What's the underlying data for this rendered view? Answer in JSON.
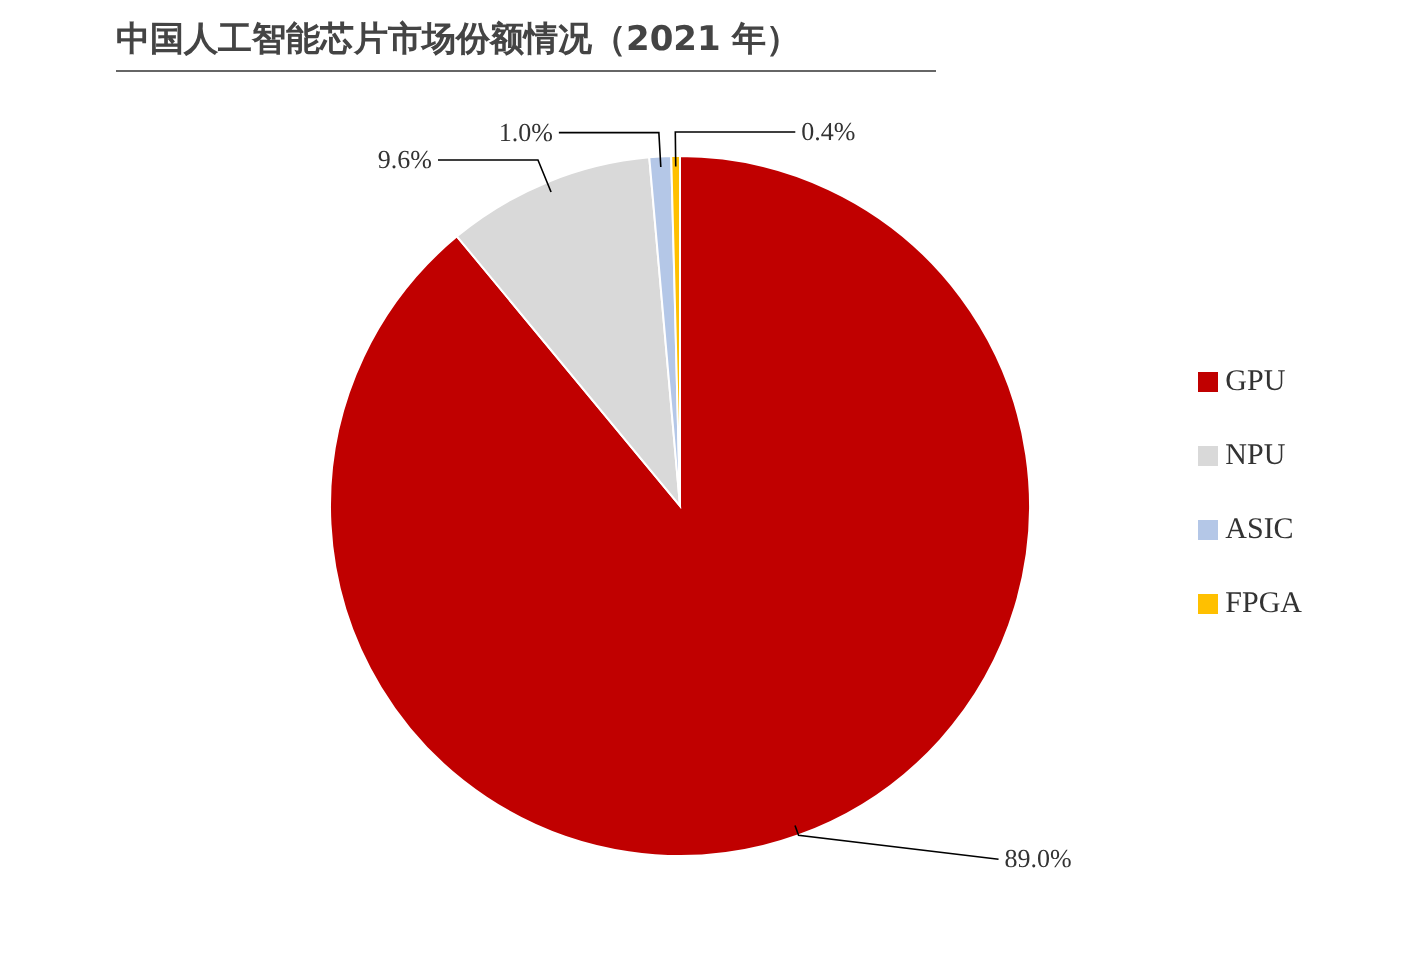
{
  "chart_data": {
    "type": "pie",
    "title": "中国人工智能芯片市场份额情况（2021 年）",
    "categories": [
      "GPU",
      "NPU",
      "ASIC",
      "FPGA"
    ],
    "values": [
      89.0,
      9.6,
      1.0,
      0.4
    ],
    "value_labels": [
      "89.0%",
      "9.6%",
      "1.0%",
      "0.4%"
    ],
    "colors": [
      "#c00000",
      "#d9d9d9",
      "#b4c7e7",
      "#ffc000"
    ],
    "legend": "right"
  }
}
